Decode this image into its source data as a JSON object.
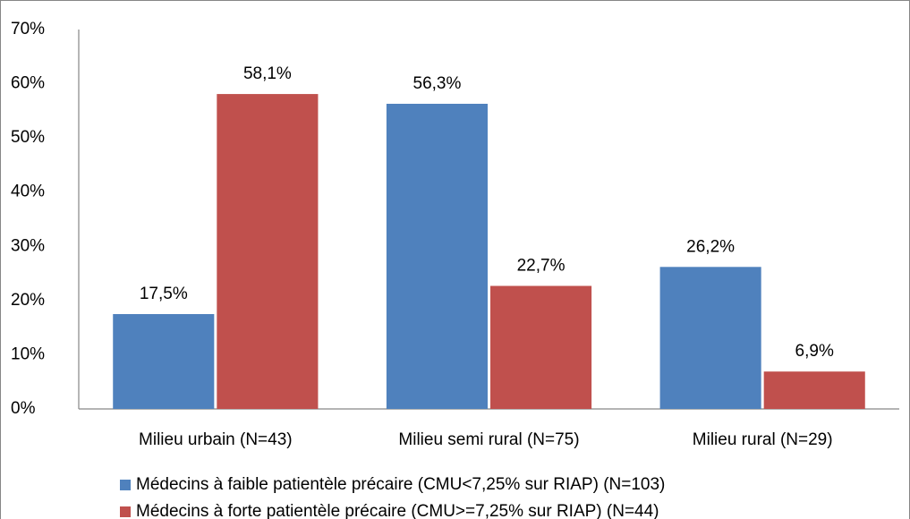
{
  "chart_data": {
    "type": "bar",
    "categories": [
      "Milieu urbain (N=43)",
      "Milieu semi rural (N=75)",
      "Milieu rural (N=29)"
    ],
    "series": [
      {
        "name": "Médecins à faible patientèle précaire (CMU<7,25% sur RIAP) (N=103)",
        "color": "#4f81bd",
        "values": [
          17.5,
          56.3,
          26.2
        ],
        "value_labels": [
          "17,5%",
          "56,3%",
          "26,2%"
        ]
      },
      {
        "name": "Médecins à forte patientèle précaire (CMU>=7,25% sur RIAP) (N=44)",
        "color": "#c0504d",
        "values": [
          58.1,
          22.7,
          6.9
        ],
        "value_labels": [
          "58,1%",
          "22,7%",
          "6,9%"
        ]
      }
    ],
    "ylim": [
      0,
      70
    ],
    "yticks": [
      {
        "value": 0,
        "label": "0%"
      },
      {
        "value": 10,
        "label": "10%"
      },
      {
        "value": 20,
        "label": "20%"
      },
      {
        "value": 30,
        "label": "30%"
      },
      {
        "value": 40,
        "label": "40%"
      },
      {
        "value": 50,
        "label": "50%"
      },
      {
        "value": 60,
        "label": "60%"
      },
      {
        "value": 70,
        "label": "70%"
      }
    ],
    "grid": false,
    "legend": "bottom"
  }
}
